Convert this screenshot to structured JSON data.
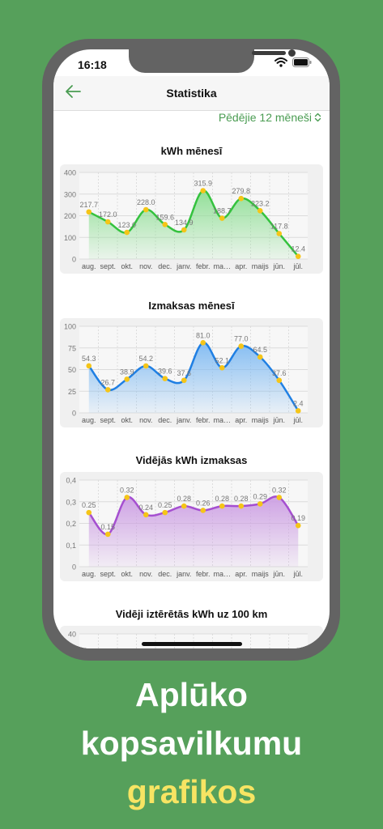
{
  "status_bar": {
    "time": "16:18"
  },
  "nav": {
    "title": "Statistika"
  },
  "period_selector": "Pēdējie 12 mēneši",
  "months": [
    "aug.",
    "sept.",
    "okt.",
    "nov.",
    "dec.",
    "janv.",
    "febr.",
    "ma…",
    "apr.",
    "maijs",
    "jūn.",
    "jūl."
  ],
  "charts": [
    {
      "title": "kWh mēnesī",
      "type": "area",
      "color": "#34c23e",
      "fill_top": "#8dde93",
      "y_ticks": [
        "0",
        "100",
        "200",
        "300",
        "400"
      ],
      "ylim": [
        0,
        400
      ],
      "values": [
        217.7,
        172.0,
        123.0,
        228.0,
        159.6,
        134.9,
        315.9,
        188.7,
        279.8,
        223.2,
        117.8,
        12.4
      ],
      "labels": [
        "217.7",
        "172.0",
        "123.0",
        "228.0",
        "159.6",
        "134.9",
        "315.9",
        "188.7",
        "279.8",
        "223.2",
        "117.8",
        "12.4"
      ]
    },
    {
      "title": "Izmaksas mēnesī",
      "type": "area",
      "color": "#1f7fe3",
      "fill_top": "#7fbaf2",
      "y_ticks": [
        "0",
        "25",
        "50",
        "75",
        "100"
      ],
      "ylim": [
        0,
        100
      ],
      "values": [
        54.3,
        26.7,
        38.9,
        54.2,
        39.6,
        37.6,
        81.0,
        52.1,
        77.0,
        64.5,
        37.6,
        2.4
      ],
      "labels": [
        "54.3",
        "26.7",
        "38.9",
        "54.2",
        "39.6",
        "37.6",
        "81.0",
        "52.1",
        "77.0",
        "64.5",
        "37.6",
        "2.4"
      ]
    },
    {
      "title": "Vidējās kWh izmaksas",
      "type": "area",
      "color": "#a54fd0",
      "fill_top": "#cc9ee3",
      "y_ticks": [
        "0",
        "0,1",
        "0,2",
        "0,3",
        "0,4"
      ],
      "ylim": [
        0,
        0.4
      ],
      "values": [
        0.25,
        0.15,
        0.32,
        0.24,
        0.25,
        0.28,
        0.26,
        0.28,
        0.28,
        0.29,
        0.32,
        0.19
      ],
      "labels": [
        "0.25",
        "0.15",
        "0.32",
        "0.24",
        "0.25",
        "0.28",
        "0.26",
        "0.28",
        "0.28",
        "0.29",
        "0.32",
        "0.19"
      ]
    }
  ],
  "chart4": {
    "title": "Vidēji iztērētās kWh uz 100 km",
    "top_tick": "40"
  },
  "headline": {
    "line1": "Aplūko",
    "line2": "kopsavilkumu",
    "line3": "grafikos"
  }
}
